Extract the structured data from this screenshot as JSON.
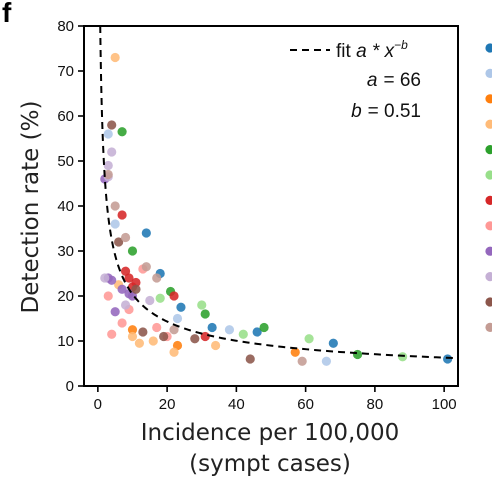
{
  "panel_label": "f",
  "chart_data": {
    "type": "scatter",
    "xlabel_line1": "Incidence per 100,000",
    "xlabel_line2": "(sympt cases)",
    "ylabel": "Detection rate (%)",
    "xlim": [
      -4,
      104
    ],
    "ylim": [
      0,
      80
    ],
    "xticks": [
      0,
      20,
      40,
      60,
      80,
      100
    ],
    "yticks": [
      0,
      10,
      20,
      30,
      40,
      50,
      60,
      70,
      80
    ],
    "grid": false,
    "legend_position": "right, cut off at image edge",
    "fit": {
      "legend_prefix": "fit ",
      "legend_formula_base": "a * x",
      "legend_formula_exp": "−b",
      "a_label": "a",
      "a_value": "= 66",
      "b_label": "b",
      "b_value": "= 0.51",
      "a": 66,
      "b": 0.51,
      "style": "dashed",
      "color": "#000000"
    },
    "series": [
      {
        "color": "#1f77b4",
        "points": [
          [
            14,
            34
          ],
          [
            18,
            25
          ],
          [
            24,
            17.5
          ],
          [
            33,
            13
          ],
          [
            46,
            12
          ],
          [
            68,
            9.5
          ],
          [
            101,
            6
          ]
        ]
      },
      {
        "color": "#aec7e8",
        "points": [
          [
            3,
            56
          ],
          [
            5,
            36
          ],
          [
            23,
            15
          ],
          [
            38,
            12.5
          ],
          [
            66,
            5.5
          ]
        ]
      },
      {
        "color": "#ff7f0e",
        "points": [
          [
            10,
            12.5
          ],
          [
            23,
            9
          ],
          [
            57,
            7.5
          ]
        ]
      },
      {
        "color": "#ffbb78",
        "points": [
          [
            5,
            73
          ],
          [
            6,
            22.5
          ],
          [
            10,
            11
          ],
          [
            12,
            9.5
          ],
          [
            16,
            10
          ],
          [
            22,
            7.5
          ],
          [
            34,
            9
          ]
        ]
      },
      {
        "color": "#2ca02c",
        "points": [
          [
            7,
            56.5
          ],
          [
            10,
            30
          ],
          [
            21,
            21
          ],
          [
            31,
            16
          ],
          [
            48,
            13
          ],
          [
            75,
            7
          ]
        ]
      },
      {
        "color": "#98df8a",
        "points": [
          [
            18,
            19.5
          ],
          [
            30,
            18
          ],
          [
            42,
            11.5
          ],
          [
            61,
            10.5
          ],
          [
            88,
            6.5
          ]
        ]
      },
      {
        "color": "#d62728",
        "points": [
          [
            7,
            38
          ],
          [
            8,
            25.5
          ],
          [
            9,
            24
          ],
          [
            10,
            22
          ],
          [
            11,
            23
          ],
          [
            22,
            20
          ],
          [
            31,
            11
          ]
        ]
      },
      {
        "color": "#ff9896",
        "points": [
          [
            3,
            20
          ],
          [
            4,
            11.5
          ],
          [
            7,
            14
          ],
          [
            9,
            17
          ],
          [
            13,
            26
          ],
          [
            17,
            13
          ],
          [
            20,
            11
          ]
        ]
      },
      {
        "color": "#9467bd",
        "points": [
          [
            2,
            46
          ],
          [
            3,
            24
          ],
          [
            4,
            23.5
          ],
          [
            5,
            16.5
          ],
          [
            7,
            21.5
          ],
          [
            9,
            20.5
          ],
          [
            10,
            20
          ]
        ]
      },
      {
        "color": "#c5b0d5",
        "points": [
          [
            2,
            24
          ],
          [
            3,
            49
          ],
          [
            3,
            46.5
          ],
          [
            4,
            52
          ],
          [
            8,
            18
          ],
          [
            15,
            19
          ]
        ]
      },
      {
        "color": "#8c564b",
        "points": [
          [
            4,
            58
          ],
          [
            6,
            32
          ],
          [
            11,
            21.5
          ],
          [
            13,
            12
          ],
          [
            19,
            11
          ],
          [
            28,
            10.5
          ],
          [
            44,
            6
          ]
        ]
      },
      {
        "color": "#c49c94",
        "points": [
          [
            3,
            47
          ],
          [
            5,
            40
          ],
          [
            8,
            33
          ],
          [
            14,
            26.5
          ],
          [
            17,
            24
          ],
          [
            22,
            12.5
          ],
          [
            59,
            5.5
          ]
        ]
      }
    ]
  }
}
